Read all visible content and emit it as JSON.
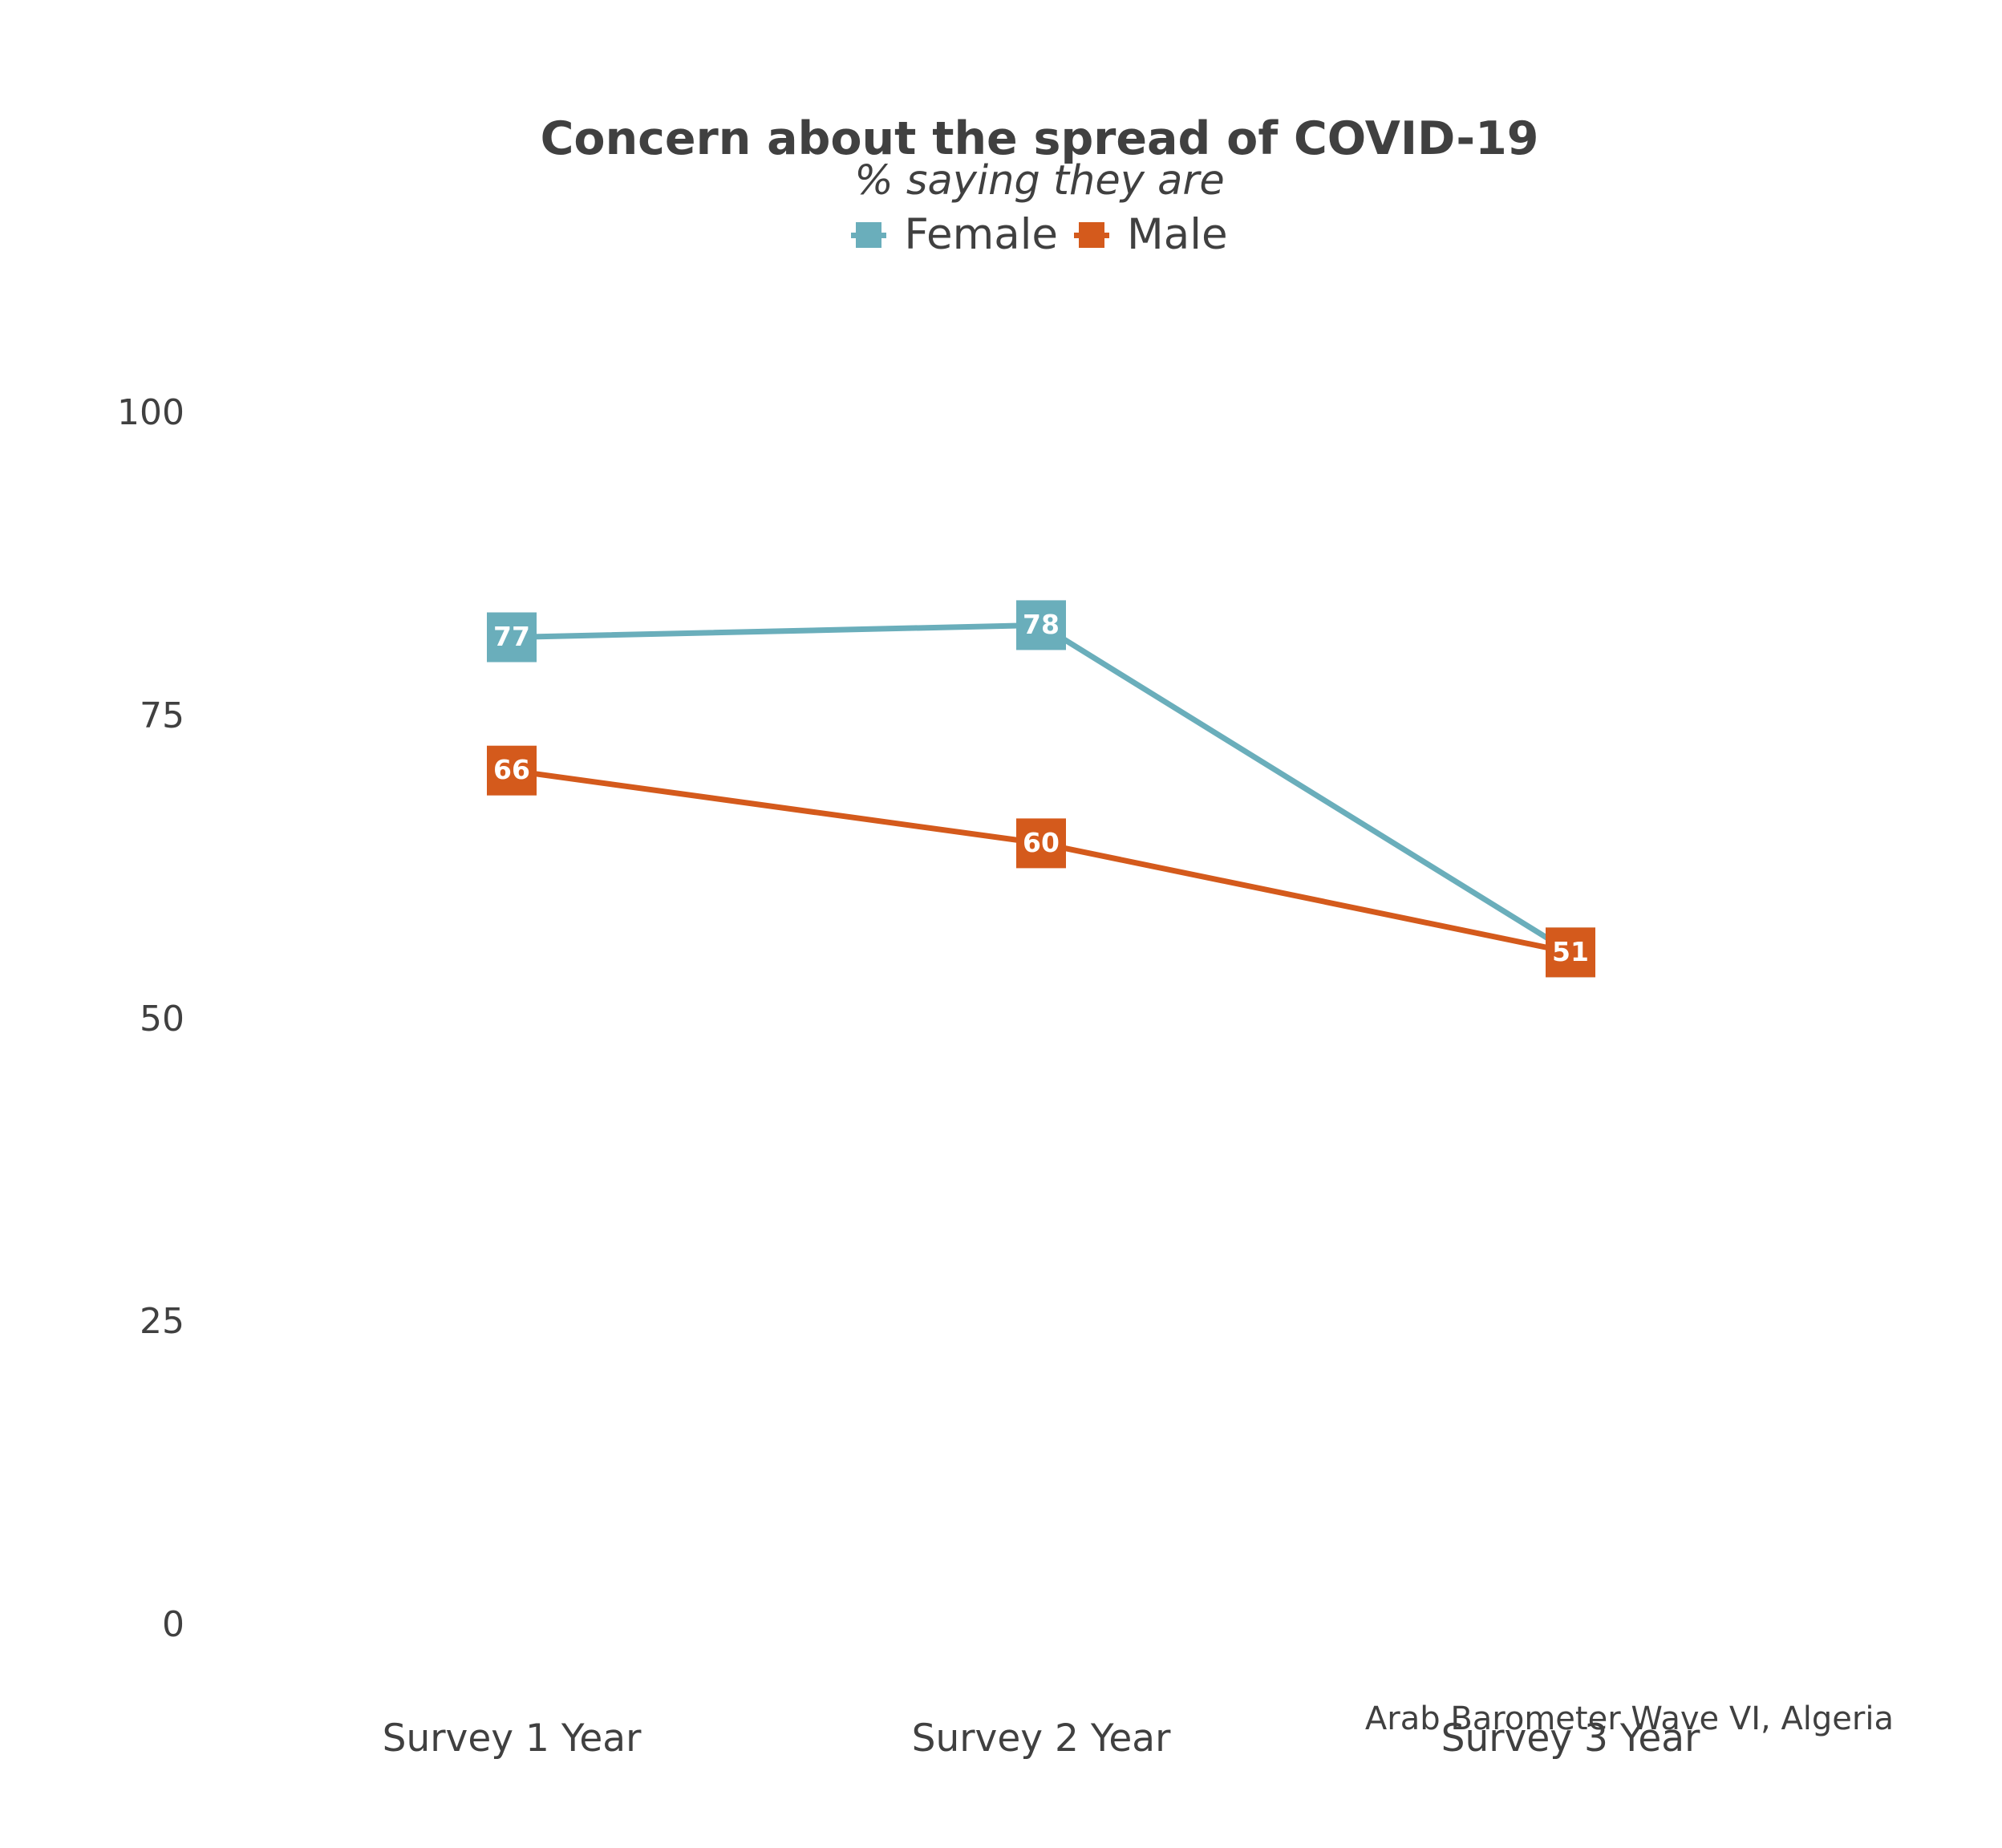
{
  "chart_data": {
    "type": "line",
    "title": "Concern about the spread of COVID-19",
    "subtitle": "% saying they are",
    "categories": [
      "Survey 1 Year",
      "Survey 2 Year",
      "Survey 3 Year"
    ],
    "series": [
      {
        "name": "Female",
        "color": "#6aaebb",
        "values": [
          77,
          78,
          51
        ]
      },
      {
        "name": "Male",
        "color": "#d45a1c",
        "values": [
          66,
          60,
          51
        ]
      }
    ],
    "ylim": [
      0,
      100
    ],
    "yticks": [
      "0",
      "25",
      "50",
      "75",
      "100"
    ],
    "xlabel": "",
    "ylabel": "",
    "grid": false,
    "legend": "top",
    "caption": "Arab Barometer Wave VI, Algeria"
  }
}
